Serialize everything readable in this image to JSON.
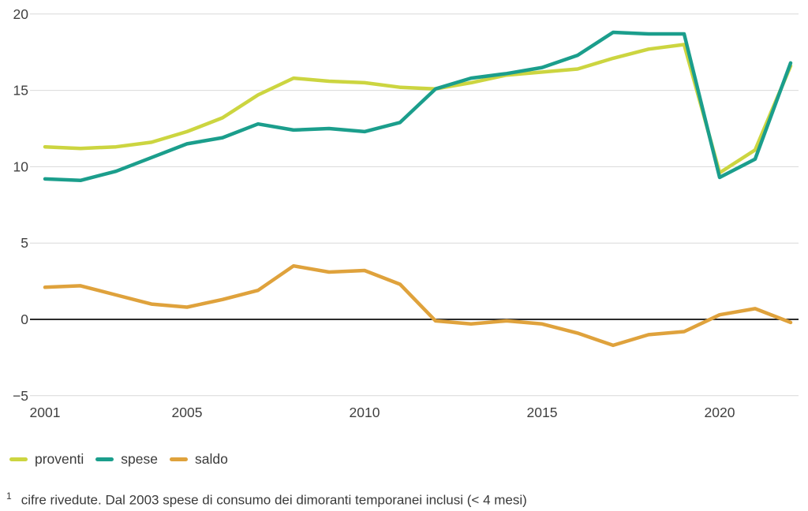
{
  "chart_data": {
    "type": "line",
    "x": [
      2001,
      2002,
      2003,
      2004,
      2005,
      2006,
      2007,
      2008,
      2009,
      2010,
      2011,
      2012,
      2013,
      2014,
      2015,
      2016,
      2017,
      2018,
      2019,
      2020,
      2021,
      2022
    ],
    "series": [
      {
        "name": "proventi",
        "color": "#ccd540",
        "values": [
          11.3,
          11.2,
          11.3,
          11.6,
          12.3,
          13.2,
          14.7,
          15.8,
          15.6,
          15.5,
          15.2,
          15.1,
          15.5,
          16.0,
          16.2,
          16.4,
          17.1,
          17.7,
          18.0,
          9.6,
          11.1,
          16.6
        ]
      },
      {
        "name": "spese",
        "color": "#1b9e8c",
        "values": [
          9.2,
          9.1,
          9.7,
          10.6,
          11.5,
          11.9,
          12.8,
          12.4,
          12.5,
          12.3,
          12.9,
          15.1,
          15.8,
          16.1,
          16.5,
          17.3,
          18.8,
          18.7,
          18.7,
          9.3,
          10.5,
          16.8
        ]
      },
      {
        "name": "saldo",
        "color": "#dfa23c",
        "values": [
          2.1,
          2.2,
          1.6,
          1.0,
          0.8,
          1.3,
          1.9,
          3.5,
          3.1,
          3.2,
          2.3,
          -0.1,
          -0.3,
          -0.1,
          -0.3,
          -0.9,
          -1.7,
          -1.0,
          -0.8,
          0.3,
          0.7,
          -0.2
        ]
      }
    ],
    "title": "",
    "xlabel": "",
    "ylabel": "",
    "ylim": [
      -5,
      20
    ],
    "yticks": [
      -5,
      0,
      5,
      10,
      15,
      20
    ],
    "xticks": [
      2001,
      2005,
      2010,
      2015,
      2020
    ],
    "grid": true,
    "zero_line": true,
    "legend_position": "bottom",
    "gridline_color": "#d9d9d9",
    "zero_line_color": "#2b2b2b",
    "tick_color": "#404040"
  },
  "legend": {
    "items": [
      {
        "label": "proventi",
        "color": "#ccd540"
      },
      {
        "label": "spese",
        "color": "#1b9e8c"
      },
      {
        "label": "saldo",
        "color": "#dfa23c"
      }
    ]
  },
  "footnote": {
    "marker": "1",
    "text": "cifre rivedute. Dal 2003 spese di consumo dei dimoranti temporanei inclusi (< 4 mesi)"
  }
}
